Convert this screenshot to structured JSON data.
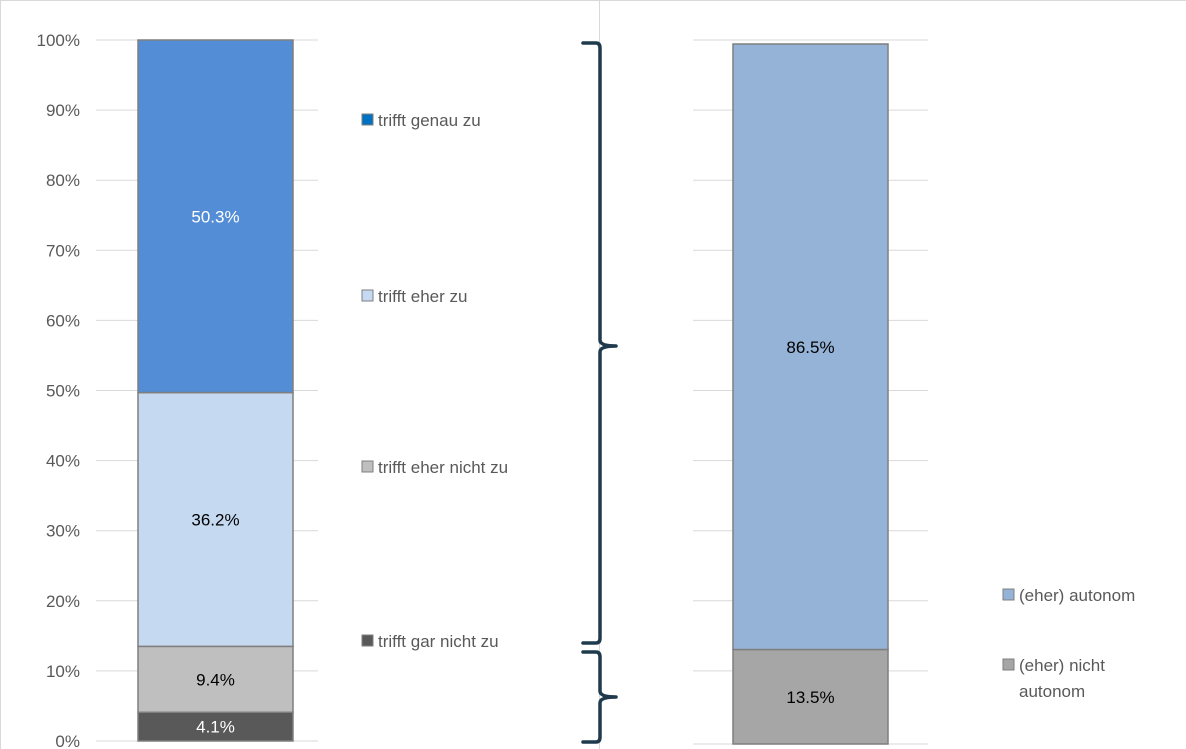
{
  "chart_data": [
    {
      "type": "bar",
      "stacked": true,
      "categories": [
        ""
      ],
      "ylim": [
        0,
        100
      ],
      "yticks": [
        "0%",
        "10%",
        "20%",
        "30%",
        "40%",
        "50%",
        "60%",
        "70%",
        "80%",
        "90%",
        "100%"
      ],
      "grid": true,
      "legend_position": "right",
      "series": [
        {
          "name": "trifft gar nicht zu",
          "values": [
            4.1
          ],
          "label": "4.1%",
          "color": "#595959"
        },
        {
          "name": "trifft eher nicht zu",
          "values": [
            9.4
          ],
          "label": "9.4%",
          "color": "#bfbfbf"
        },
        {
          "name": "trifft eher zu",
          "values": [
            36.2
          ],
          "label": "36.2%",
          "color": "#c5d9f1"
        },
        {
          "name": "trifft genau zu",
          "values": [
            50.3
          ],
          "label": "50.3%",
          "color": "#538dd5"
        }
      ],
      "legend_order": [
        "trifft genau zu",
        "trifft eher zu",
        "trifft eher nicht zu",
        "trifft gar nicht zu"
      ],
      "legend_colors": {
        "trifft genau zu": "#0070c0",
        "trifft eher zu": "#c5d9f1",
        "trifft eher nicht zu": "#bfbfbf",
        "trifft gar nicht zu": "#595959"
      }
    },
    {
      "type": "bar",
      "stacked": true,
      "categories": [
        ""
      ],
      "ylim": [
        0,
        100
      ],
      "grid": true,
      "legend_position": "right",
      "series": [
        {
          "name": "(eher) nicht autonom",
          "values": [
            13.5
          ],
          "label": "13.5%",
          "color": "#a6a6a6"
        },
        {
          "name": "(eher) autonom",
          "values": [
            86.5
          ],
          "label": "86.5%",
          "color": "#95b3d7"
        }
      ]
    }
  ],
  "colors": {
    "brace": "#1f3a4d",
    "gridline": "#d9d9d9",
    "axis_text": "#595959",
    "border": "#7f7f7f"
  }
}
